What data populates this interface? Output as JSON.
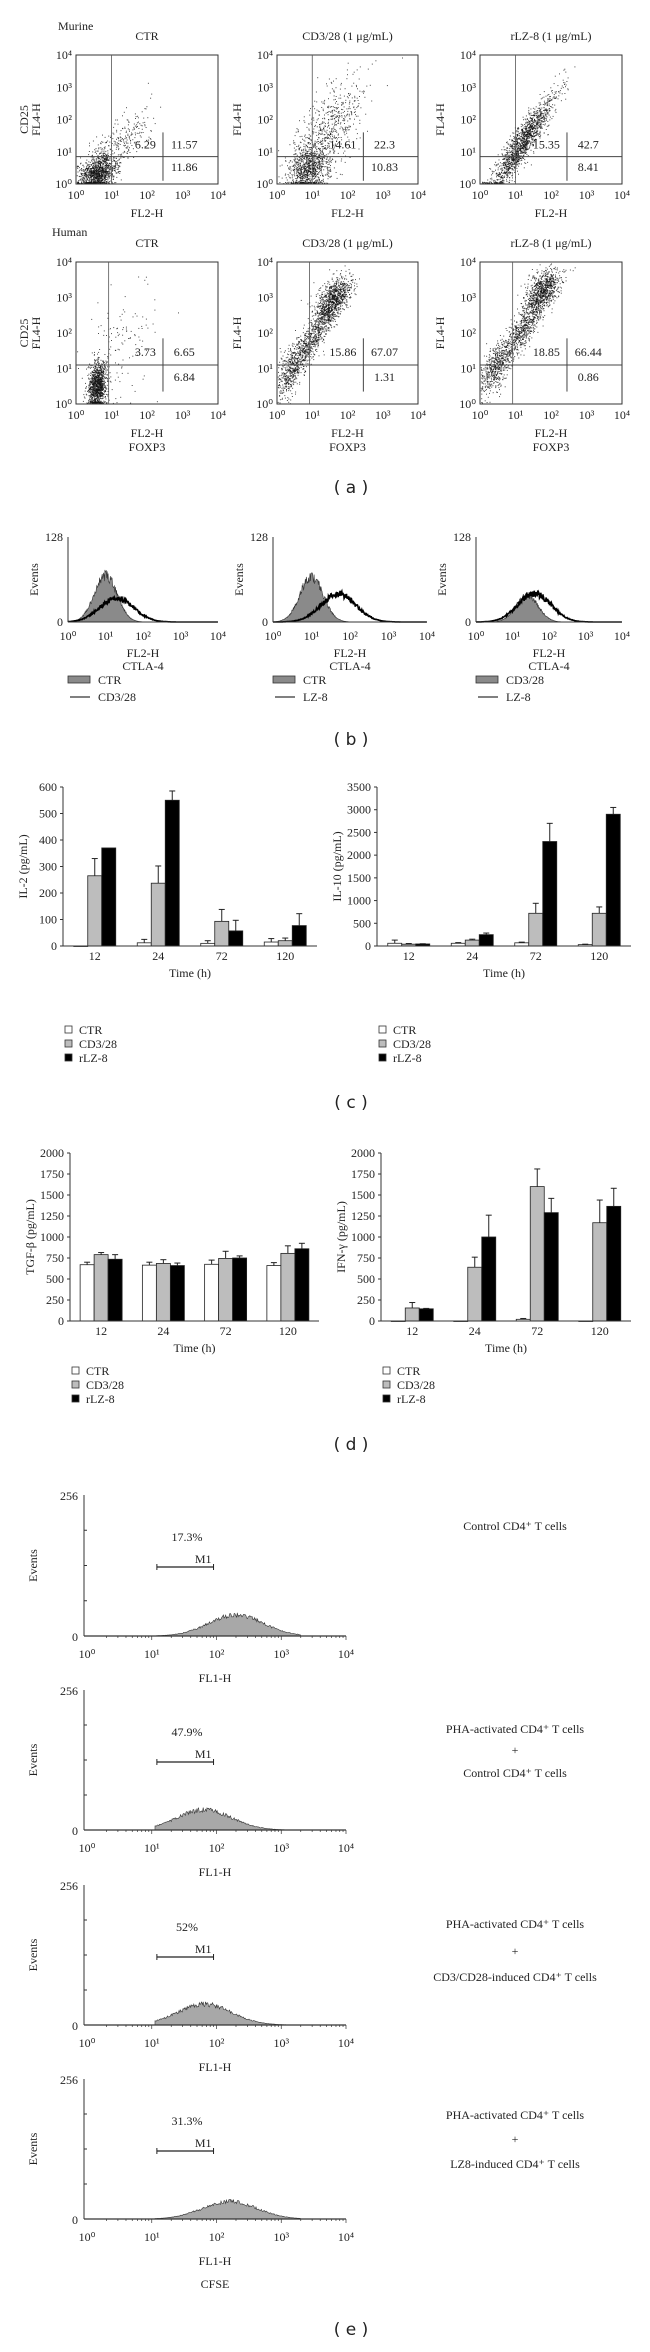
{
  "panel_labels": [
    "( a )",
    "( b )",
    "( c )",
    "( d )",
    "( e )"
  ],
  "groups": [
    "Murine",
    "Human"
  ],
  "chart_data": [
    {
      "type": "scatter",
      "panel": "a",
      "group": "Murine",
      "title": "CTR",
      "xlabel": [
        "FL2-H"
      ],
      "ylabel": [
        "CD25",
        "FL4-H"
      ],
      "xticks": [
        "10⁰",
        "10¹",
        "10²",
        "10³",
        "10⁴"
      ],
      "yticks": [
        "10⁰",
        "10¹",
        "10²",
        "10³",
        "10⁴"
      ],
      "xlim": [
        1,
        10000
      ],
      "ylim": [
        1,
        10000
      ],
      "quadrants": {
        "upper_left": "6.29",
        "upper_right": "11.57",
        "lower_right": "11.86"
      }
    },
    {
      "type": "scatter",
      "panel": "a",
      "group": "Murine",
      "title": "CD3/28 (1 μg/mL)",
      "xlabel": [
        "FL2-H"
      ],
      "ylabel": [
        "FL4-H"
      ],
      "xticks": [
        "10⁰",
        "10¹",
        "10²",
        "10³",
        "10⁴"
      ],
      "yticks": [
        "10⁰",
        "10¹",
        "10²",
        "10³",
        "10⁴"
      ],
      "xlim": [
        1,
        10000
      ],
      "ylim": [
        1,
        10000
      ],
      "quadrants": {
        "upper_left": "14.61",
        "upper_right": "22.3",
        "lower_right": "10.83"
      }
    },
    {
      "type": "scatter",
      "panel": "a",
      "group": "Murine",
      "title": "rLZ-8 (1 μg/mL)",
      "xlabel": [
        "FL2-H"
      ],
      "ylabel": [
        "FL4-H"
      ],
      "xticks": [
        "10⁰",
        "10¹",
        "10²",
        "10³",
        "10⁴"
      ],
      "yticks": [
        "10⁰",
        "10¹",
        "10²",
        "10³",
        "10⁴"
      ],
      "xlim": [
        1,
        10000
      ],
      "ylim": [
        1,
        10000
      ],
      "quadrants": {
        "upper_left": "15.35",
        "upper_right": "42.7",
        "lower_right": "8.41"
      }
    },
    {
      "type": "scatter",
      "panel": "a",
      "group": "Human",
      "title": "CTR",
      "xlabel": [
        "FL2-H",
        "FOXP3"
      ],
      "ylabel": [
        "CD25",
        "FL4-H"
      ],
      "xticks": [
        "10⁰",
        "10¹",
        "10²",
        "10³",
        "10⁴"
      ],
      "yticks": [
        "10⁰",
        "10¹",
        "10²",
        "10³",
        "10⁴"
      ],
      "xlim": [
        1,
        10000
      ],
      "ylim": [
        1,
        10000
      ],
      "quadrants": {
        "upper_left": "3.73",
        "upper_right": "6.65",
        "lower_right": "6.84"
      }
    },
    {
      "type": "scatter",
      "panel": "a",
      "group": "Human",
      "title": "CD3/28 (1 μg/mL)",
      "xlabel": [
        "FL2-H",
        "FOXP3"
      ],
      "ylabel": [
        "FL4-H"
      ],
      "xticks": [
        "10⁰",
        "10¹",
        "10²",
        "10³",
        "10⁴"
      ],
      "yticks": [
        "10⁰",
        "10¹",
        "10²",
        "10³",
        "10⁴"
      ],
      "xlim": [
        1,
        10000
      ],
      "ylim": [
        1,
        10000
      ],
      "quadrants": {
        "upper_left": "15.86",
        "upper_right": "67.07",
        "lower_right": "1.31"
      }
    },
    {
      "type": "scatter",
      "panel": "a",
      "group": "Human",
      "title": "rLZ-8 (1 μg/mL)",
      "xlabel": [
        "FL2-H",
        "FOXP3"
      ],
      "ylabel": [
        "FL4-H"
      ],
      "xticks": [
        "10⁰",
        "10¹",
        "10²",
        "10³",
        "10⁴"
      ],
      "yticks": [
        "10⁰",
        "10¹",
        "10²",
        "10³",
        "10⁴"
      ],
      "xlim": [
        1,
        10000
      ],
      "ylim": [
        1,
        10000
      ],
      "quadrants": {
        "upper_left": "18.85",
        "upper_right": "66.44",
        "lower_right": "0.86"
      }
    },
    {
      "type": "area",
      "panel": "b",
      "xlabel": [
        "FL2-H",
        "CTLA-4"
      ],
      "ylabel": "Events",
      "ylim": [
        0,
        128
      ],
      "yticks": [
        "0",
        "128"
      ],
      "xticks": [
        "10⁰",
        "10¹",
        "10²",
        "10³",
        "10⁴"
      ],
      "series": [
        {
          "name": "CTR",
          "style": "filled",
          "peak": 10,
          "height": 70
        },
        {
          "name": "CD3/28",
          "style": "line",
          "peak": 20,
          "height": 36
        }
      ]
    },
    {
      "type": "area",
      "panel": "b",
      "xlabel": [
        "FL2-H",
        "CTLA-4"
      ],
      "ylabel": "Events",
      "ylim": [
        0,
        128
      ],
      "yticks": [
        "0",
        "128"
      ],
      "xticks": [
        "10⁰",
        "10¹",
        "10²",
        "10³",
        "10⁴"
      ],
      "series": [
        {
          "name": "CTR",
          "style": "filled",
          "peak": 10,
          "height": 68
        },
        {
          "name": "LZ-8",
          "style": "line",
          "peak": 50,
          "height": 42
        }
      ]
    },
    {
      "type": "area",
      "panel": "b",
      "xlabel": [
        "FL2-H",
        "CTLA-4"
      ],
      "ylabel": "Events",
      "ylim": [
        0,
        128
      ],
      "yticks": [
        "0",
        "128"
      ],
      "xticks": [
        "10⁰",
        "10¹",
        "10²",
        "10³",
        "10⁴"
      ],
      "series": [
        {
          "name": "CD3/28",
          "style": "filled",
          "peak": 25,
          "height": 40
        },
        {
          "name": "LZ-8",
          "style": "line",
          "peak": 40,
          "height": 43
        }
      ]
    },
    {
      "type": "bar",
      "panel": "c",
      "categories": [
        "12",
        "24",
        "72",
        "120"
      ],
      "xlabel": "Time (h)",
      "ylabel": "IL-2 (pg/mL)",
      "ylim": [
        0,
        600
      ],
      "yticks": [
        "0",
        "100",
        "200",
        "300",
        "400",
        "500",
        "600"
      ],
      "series": [
        {
          "name": "CTR",
          "color": "#ffffff",
          "values": [
            0,
            12,
            10,
            15
          ],
          "error_top": [
            0,
            25,
            20,
            28
          ]
        },
        {
          "name": "CD3/28",
          "color": "#bdbdbd",
          "values": [
            265,
            237,
            93,
            20
          ],
          "error_top": [
            330,
            302,
            138,
            30
          ]
        },
        {
          "name": "rLZ-8",
          "color": "#000000",
          "values": [
            370,
            550,
            57,
            77
          ],
          "error_top": [
            370,
            585,
            97,
            122
          ]
        }
      ]
    },
    {
      "type": "bar",
      "panel": "c",
      "categories": [
        "12",
        "24",
        "72",
        "120"
      ],
      "xlabel": "Time (h)",
      "ylabel": "IL-10 (pg/mL)",
      "ylim": [
        0,
        3500
      ],
      "yticks": [
        "0",
        "500",
        "1000",
        "1500",
        "2000",
        "2500",
        "3000",
        "3500"
      ],
      "series": [
        {
          "name": "CTR",
          "color": "#ffffff",
          "values": [
            60,
            60,
            70,
            30
          ],
          "error_top": [
            130,
            75,
            85,
            40
          ]
        },
        {
          "name": "CD3/28",
          "color": "#bdbdbd",
          "values": [
            40,
            130,
            720,
            720
          ],
          "error_top": [
            55,
            150,
            940,
            860
          ]
        },
        {
          "name": "rLZ-8",
          "color": "#000000",
          "values": [
            45,
            250,
            2300,
            2900
          ],
          "error_top": [
            50,
            285,
            2700,
            3050
          ]
        }
      ]
    },
    {
      "type": "bar",
      "panel": "d",
      "categories": [
        "12",
        "24",
        "72",
        "120"
      ],
      "xlabel": "Time (h)",
      "ylabel": "TGF-β (pg/mL)",
      "ylim": [
        0,
        2000
      ],
      "yticks": [
        "0",
        "250",
        "500",
        "750",
        "1000",
        "1250",
        "1500",
        "1750",
        "2000"
      ],
      "series": [
        {
          "name": "CTR",
          "color": "#ffffff",
          "values": [
            670,
            665,
            675,
            660
          ],
          "error_top": [
            700,
            700,
            725,
            695
          ]
        },
        {
          "name": "CD3/28",
          "color": "#bdbdbd",
          "values": [
            790,
            685,
            745,
            805
          ],
          "error_top": [
            815,
            730,
            830,
            895
          ]
        },
        {
          "name": "rLZ-8",
          "color": "#000000",
          "values": [
            735,
            660,
            750,
            860
          ],
          "error_top": [
            790,
            690,
            775,
            925
          ]
        }
      ]
    },
    {
      "type": "bar",
      "panel": "d",
      "categories": [
        "12",
        "24",
        "72",
        "120"
      ],
      "xlabel": "Time (h)",
      "ylabel": "IFN-γ (pg/mL)",
      "ylim": [
        0,
        2000
      ],
      "yticks": [
        "0",
        "250",
        "500",
        "750",
        "1000",
        "1250",
        "1500",
        "1750",
        "2000"
      ],
      "series": [
        {
          "name": "CTR",
          "color": "#ffffff",
          "values": [
            0,
            0,
            20,
            0
          ],
          "error_top": [
            0,
            0,
            30,
            0
          ]
        },
        {
          "name": "CD3/28",
          "color": "#bdbdbd",
          "values": [
            155,
            640,
            1600,
            1170
          ],
          "error_top": [
            220,
            760,
            1810,
            1440
          ]
        },
        {
          "name": "rLZ-8",
          "color": "#000000",
          "values": [
            145,
            1000,
            1290,
            1365
          ],
          "error_top": [
            150,
            1260,
            1460,
            1580
          ]
        }
      ]
    },
    {
      "type": "area",
      "panel": "e",
      "xlabel": [
        "FL1-H"
      ],
      "ylabel": "Events",
      "ylim": [
        0,
        256
      ],
      "yticks": [
        "0",
        "256"
      ],
      "xticks": [
        "10⁰",
        "10¹",
        "10²",
        "10³",
        "10⁴"
      ],
      "peak": 200,
      "height": 38,
      "marker": {
        "label": "M1",
        "percent": "17.3%",
        "range": [
          12,
          90
        ]
      },
      "condition": [
        "Control CD4⁺ T cells"
      ]
    },
    {
      "type": "area",
      "panel": "e",
      "xlabel": [
        "FL1-H"
      ],
      "ylabel": "Events",
      "ylim": [
        0,
        256
      ],
      "yticks": [
        "0",
        "256"
      ],
      "xticks": [
        "10⁰",
        "10¹",
        "10²",
        "10³",
        "10⁴"
      ],
      "peak": 65,
      "height": 37,
      "marker": {
        "label": "M1",
        "percent": "47.9%",
        "range": [
          12,
          90
        ]
      },
      "condition": [
        "PHA-activated CD4⁺ T cells",
        "+",
        "Control CD4⁺ T cells"
      ]
    },
    {
      "type": "area",
      "panel": "e",
      "xlabel": [
        "FL1-H"
      ],
      "ylabel": "Events",
      "ylim": [
        0,
        256
      ],
      "yticks": [
        "0",
        "256"
      ],
      "xticks": [
        "10⁰",
        "10¹",
        "10²",
        "10³",
        "10⁴"
      ],
      "peak": 65,
      "height": 38,
      "marker": {
        "label": "M1",
        "percent": "52%",
        "range": [
          12,
          90
        ]
      },
      "condition": [
        "PHA-activated CD4⁺ T cells",
        "+",
        "CD3/CD28-induced CD4⁺ T cells"
      ]
    },
    {
      "type": "area",
      "panel": "e",
      "xlabel": [
        "FL1-H",
        "CFSE"
      ],
      "ylabel": "Events",
      "ylim": [
        0,
        256
      ],
      "yticks": [
        "0",
        "256"
      ],
      "xticks": [
        "10⁰",
        "10¹",
        "10²",
        "10³",
        "10⁴"
      ],
      "peak": 160,
      "height": 32,
      "marker": {
        "label": "M1",
        "percent": "31.3%",
        "range": [
          12,
          90
        ]
      },
      "condition": [
        "PHA-activated CD4⁺ T cells",
        "+",
        "LZ8-induced CD4⁺ T cells"
      ]
    }
  ]
}
